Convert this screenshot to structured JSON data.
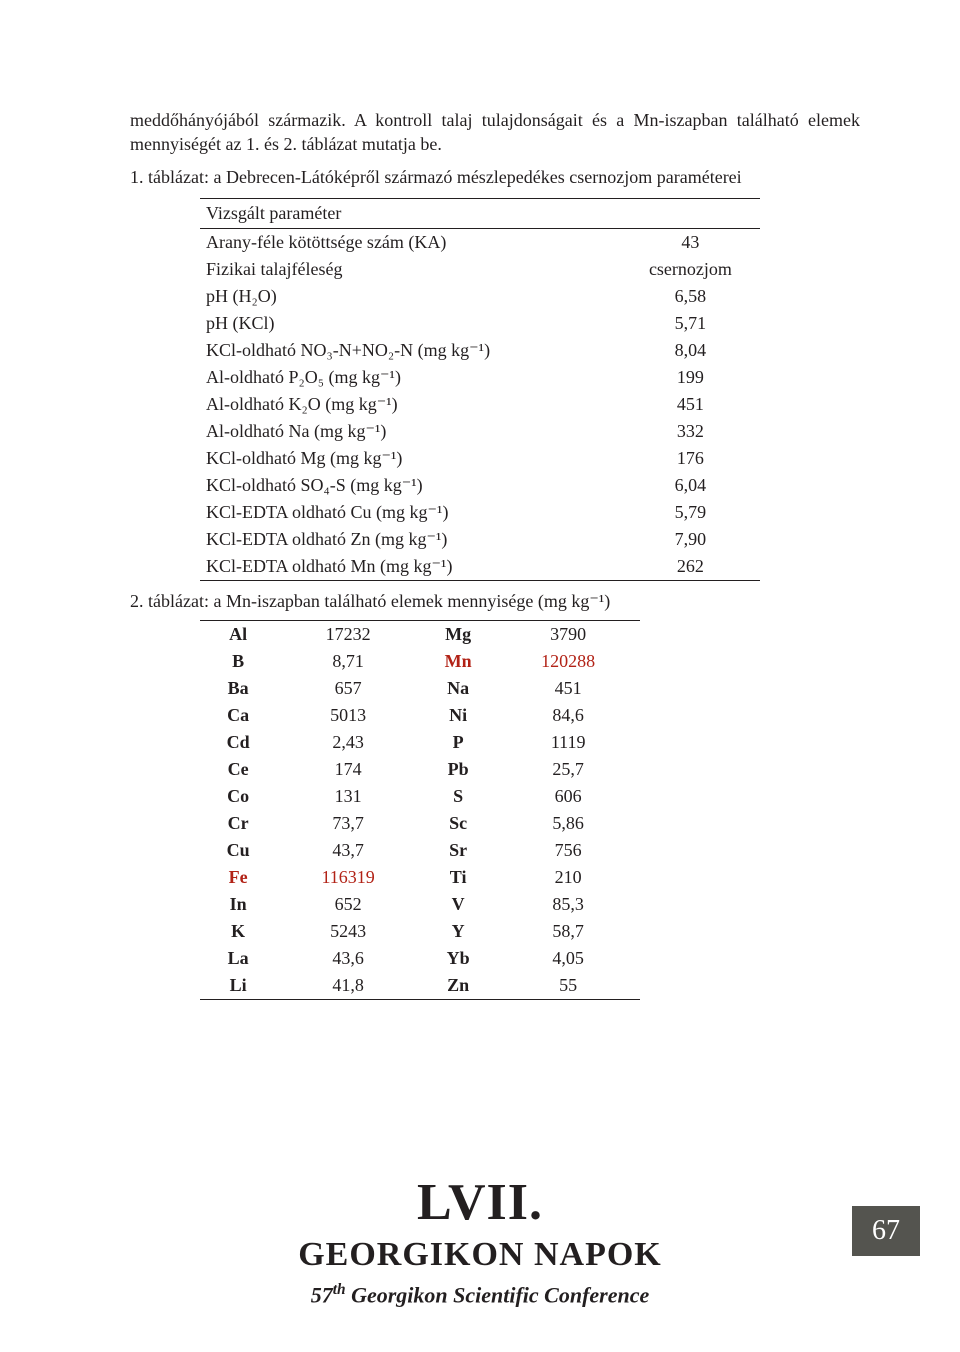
{
  "intro": "meddőhányójából származik. A kontroll talaj tulajdonságait és a Mn-iszapban található elemek mennyiségét az 1. és 2. táblázat mutatja be.",
  "table1_caption": "1. táblázat: a Debrecen-Látóképről származó mészlepedékes csernozjom paraméterei",
  "table1_header": "Vizsgált paraméter",
  "t1": {
    "r0": {
      "p": "Arany-féle kötöttsége szám (KA)",
      "v": "43"
    },
    "r1": {
      "p": "Fizikai talajféleség",
      "v": "csernozjom"
    },
    "r2": {
      "p": "pH (H₂O)",
      "v": "6,58"
    },
    "r3": {
      "p": "pH (KCl)",
      "v": "5,71"
    },
    "r4": {
      "p": "KCl-oldható NO₃-N+NO₂-N      (mg kg⁻¹)",
      "v": "8,04"
    },
    "r5": {
      "p": "Al-oldható P₂O₅ (mg kg⁻¹)",
      "v": "199"
    },
    "r6": {
      "p": "Al-oldható K₂O (mg kg⁻¹)",
      "v": "451"
    },
    "r7": {
      "p": "Al-oldható Na (mg kg⁻¹)",
      "v": "332"
    },
    "r8": {
      "p": "KCl-oldható Mg (mg kg⁻¹)",
      "v": "176"
    },
    "r9": {
      "p": "KCl-oldható SO₄-S (mg kg⁻¹)",
      "v": "6,04"
    },
    "r10": {
      "p": "KCl-EDTA oldható Cu (mg kg⁻¹)",
      "v": "5,79"
    },
    "r11": {
      "p": "KCl-EDTA oldható Zn (mg kg⁻¹)",
      "v": "7,90"
    },
    "r12": {
      "p": "KCl-EDTA oldható Mn (mg kg⁻¹)",
      "v": "262"
    }
  },
  "table2_caption": "2. táblázat: a Mn-iszapban található elemek mennyisége (mg kg⁻¹)",
  "t2": {
    "r0": {
      "a": "Al",
      "av": "17232",
      "b": "Mg",
      "bv": "3790"
    },
    "r1": {
      "a": "B",
      "av": "8,71",
      "b": "Mn",
      "bv": "120288"
    },
    "r2": {
      "a": "Ba",
      "av": "657",
      "b": "Na",
      "bv": "451"
    },
    "r3": {
      "a": "Ca",
      "av": "5013",
      "b": "Ni",
      "bv": "84,6"
    },
    "r4": {
      "a": "Cd",
      "av": "2,43",
      "b": "P",
      "bv": "1119"
    },
    "r5": {
      "a": "Ce",
      "av": "174",
      "b": "Pb",
      "bv": "25,7"
    },
    "r6": {
      "a": "Co",
      "av": "131",
      "b": "S",
      "bv": "606"
    },
    "r7": {
      "a": "Cr",
      "av": "73,7",
      "b": "Sc",
      "bv": "5,86"
    },
    "r8": {
      "a": "Cu",
      "av": "43,7",
      "b": "Sr",
      "bv": "756"
    },
    "r9": {
      "a": "Fe",
      "av": "116319",
      "b": "Ti",
      "bv": "210"
    },
    "r10": {
      "a": "In",
      "av": "652",
      "b": "V",
      "bv": "85,3"
    },
    "r11": {
      "a": "K",
      "av": "5243",
      "b": "Y",
      "bv": "58,7"
    },
    "r12": {
      "a": "La",
      "av": "43,6",
      "b": "Yb",
      "bv": "4,05"
    },
    "r13": {
      "a": "Li",
      "av": "41,8",
      "b": "Zn",
      "bv": "55"
    }
  },
  "t2_red_rows": {
    "a": [
      "r9"
    ],
    "b": [
      "r1"
    ]
  },
  "footer": {
    "lvii": "LVII.",
    "napok": "GEORGIKON NAPOK",
    "conf_pre": "57",
    "conf_sup": "th",
    "conf_post": " Georgikon Scientific Conference",
    "pagenum": "67"
  },
  "colors": {
    "text": "#231f20",
    "red": "#b22216",
    "pagebox": "#54544f"
  }
}
